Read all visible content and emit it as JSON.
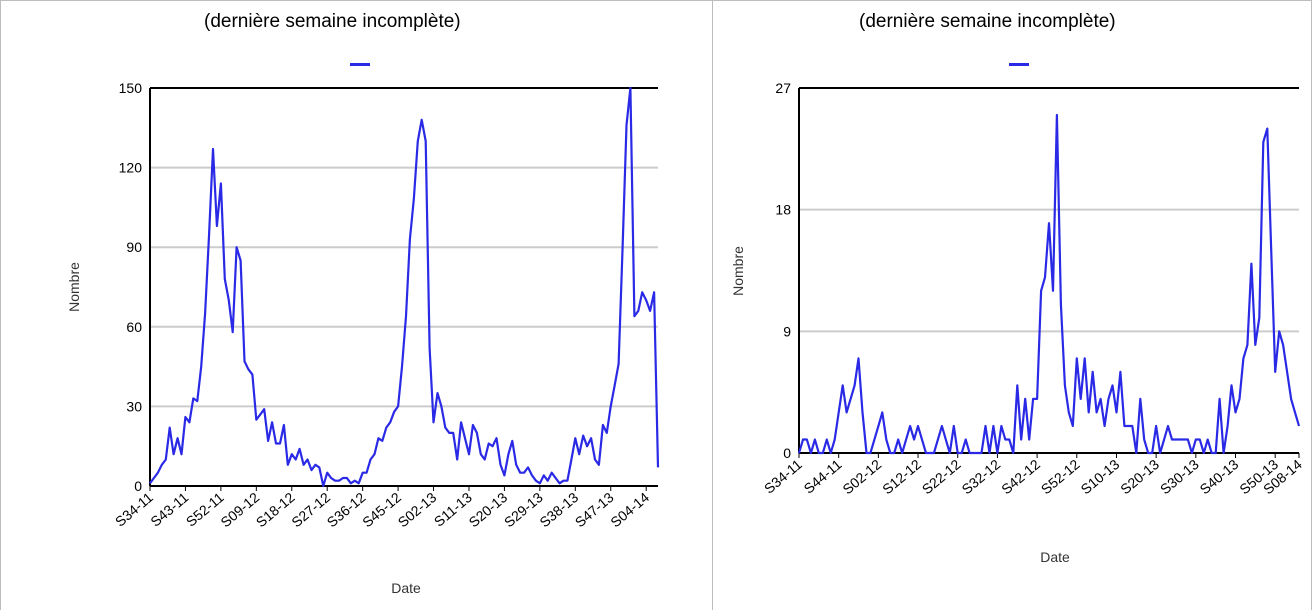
{
  "colors": {
    "series": "#2a2ae6",
    "grid": "#cccccc",
    "axis": "#000000",
    "border": "#bdbdbd"
  },
  "chart_data": [
    {
      "type": "line",
      "title": "(dernière semaine incomplète)",
      "xlabel": "Date",
      "ylabel": "Nombre",
      "ylim": [
        0,
        150
      ],
      "yticks": [
        0,
        30,
        60,
        90,
        120,
        150
      ],
      "grid": true,
      "legend": "top-center",
      "x_tick_labels": [
        "S34-11",
        "S43-11",
        "S52-11",
        "S09-12",
        "S18-12",
        "S27-12",
        "S36-12",
        "S45-12",
        "S02-13",
        "S11-13",
        "S20-13",
        "S29-13",
        "S38-13",
        "S47-13",
        "S04-14"
      ],
      "x_tick_every": 9,
      "series": [
        {
          "values": [
            1,
            3,
            5,
            8,
            10,
            22,
            12,
            18,
            12,
            26,
            24,
            33,
            32,
            45,
            65,
            95,
            127,
            98,
            114,
            78,
            70,
            58,
            90,
            85,
            47,
            44,
            42,
            25,
            27,
            29,
            17,
            24,
            16,
            16,
            23,
            8,
            12,
            10,
            14,
            8,
            10,
            6,
            8,
            7,
            0,
            5,
            3,
            2,
            2,
            3,
            3,
            1,
            2,
            1,
            5,
            5,
            10,
            12,
            18,
            17,
            22,
            24,
            28,
            30,
            45,
            64,
            93,
            108,
            130,
            138,
            130,
            52,
            24,
            35,
            30,
            22,
            20,
            20,
            10,
            24,
            18,
            12,
            23,
            20,
            12,
            10,
            16,
            15,
            18,
            8,
            4,
            12,
            17,
            8,
            5,
            5,
            7,
            4,
            2,
            1,
            4,
            2,
            5,
            3,
            1,
            2,
            2,
            10,
            18,
            12,
            19,
            15,
            18,
            10,
            8,
            23,
            20,
            30,
            38,
            46,
            90,
            136,
            150,
            64,
            66,
            73,
            70,
            66,
            73,
            7
          ]
        }
      ]
    },
    {
      "type": "line",
      "title": "(dernière semaine incomplète)",
      "xlabel": "Date",
      "ylabel": "Nombre",
      "ylim": [
        0,
        27
      ],
      "yticks": [
        0,
        9,
        18,
        27
      ],
      "grid": true,
      "legend": "top-center",
      "x_tick_labels": [
        "S34-11",
        "S44-11",
        "S02-12",
        "S12-12",
        "S22-12",
        "S32-12",
        "S42-12",
        "S52-12",
        "S10-13",
        "S20-13",
        "S30-13",
        "S40-13",
        "S50-13",
        "S08-14"
      ],
      "x_tick_every": 10,
      "series": [
        {
          "values": [
            0,
            1,
            1,
            0,
            1,
            0,
            0,
            1,
            0,
            1,
            3,
            5,
            3,
            4,
            5,
            7,
            3,
            0,
            0,
            1,
            2,
            3,
            1,
            0,
            0,
            1,
            0,
            1,
            2,
            1,
            2,
            1,
            0,
            0,
            0,
            1,
            2,
            1,
            0,
            2,
            0,
            0,
            1,
            0,
            0,
            0,
            0,
            2,
            0,
            2,
            0,
            2,
            1,
            1,
            0,
            5,
            1,
            4,
            1,
            4,
            4,
            12,
            13,
            17,
            12,
            25,
            11,
            5,
            3,
            2,
            7,
            4,
            7,
            3,
            6,
            3,
            4,
            2,
            4,
            5,
            3,
            6,
            2,
            2,
            2,
            0,
            4,
            1,
            0,
            0,
            2,
            0,
            1,
            2,
            1,
            1,
            1,
            1,
            1,
            0,
            1,
            1,
            0,
            1,
            0,
            0,
            4,
            0,
            2,
            5,
            3,
            4,
            7,
            8,
            14,
            8,
            10,
            23,
            24,
            15,
            6,
            9,
            8,
            6,
            4,
            3,
            2
          ]
        }
      ]
    }
  ]
}
